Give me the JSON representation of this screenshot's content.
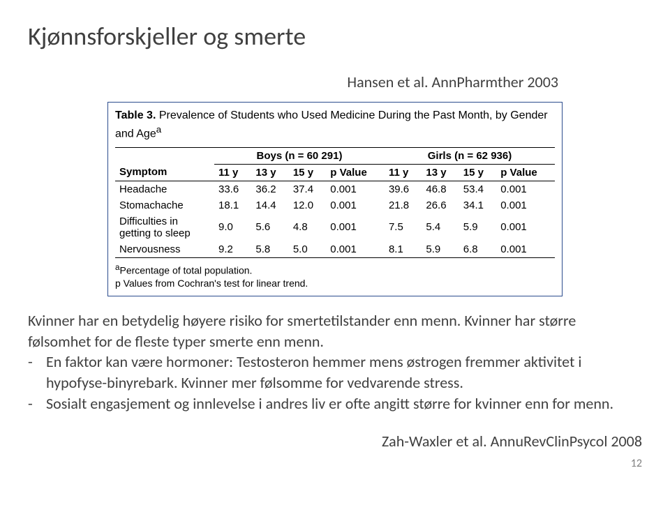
{
  "title": "Kjønnsforskjeller og smerte",
  "top_citation": "Hansen et al. AnnPharmther 2003",
  "table": {
    "caption_label": "Table 3.",
    "caption_text": " Prevalence of Students who Used Medicine During the Past Month, by Gender and Age",
    "caption_sup": "a",
    "group1": "Boys (n = 60 291)",
    "group2": "Girls (n = 62 936)",
    "col_symptom": "Symptom",
    "cols_ages": [
      "11 y",
      "13 y",
      "15 y",
      "p Value",
      "11 y",
      "13 y",
      "15 y",
      "p Value"
    ],
    "rows": [
      {
        "symptom": "Headache",
        "vals": [
          "33.6",
          "36.2",
          "37.4",
          "0.001",
          "39.6",
          "46.8",
          "53.4",
          "0.001"
        ]
      },
      {
        "symptom": "Stomachache",
        "vals": [
          "18.1",
          "14.4",
          "12.0",
          "0.001",
          "21.8",
          "26.6",
          "34.1",
          "0.001"
        ]
      },
      {
        "symptom": "Difficulties in getting to sleep",
        "vals": [
          "9.0",
          "5.6",
          "4.8",
          "0.001",
          "7.5",
          "5.4",
          "5.9",
          "0.001"
        ]
      },
      {
        "symptom": "Nervousness",
        "vals": [
          "9.2",
          "5.8",
          "5.0",
          "0.001",
          "8.1",
          "5.9",
          "6.8",
          "0.001"
        ]
      }
    ],
    "footnote_a_sup": "a",
    "footnote_a": "Percentage of total population.",
    "footnote_b": "p Values from Cochran's test for linear trend."
  },
  "para1": "Kvinner har en betydelig høyere risiko for smertetilstander enn menn. Kvinner har større følsomhet for de fleste typer smerte enn menn.",
  "bullet1": "En faktor kan være hormoner: Testosteron hemmer mens østrogen fremmer aktivitet i hypofyse-binyrebark. Kvinner mer følsomme for vedvarende stress.",
  "bullet2": "Sosialt engasjement og innlevelse i andres liv er ofte angitt større for kvinner enn for menn.",
  "bottom_citation": "Zah-Waxler et al. AnnuRevClinPsycol 2008",
  "page_number": "12"
}
